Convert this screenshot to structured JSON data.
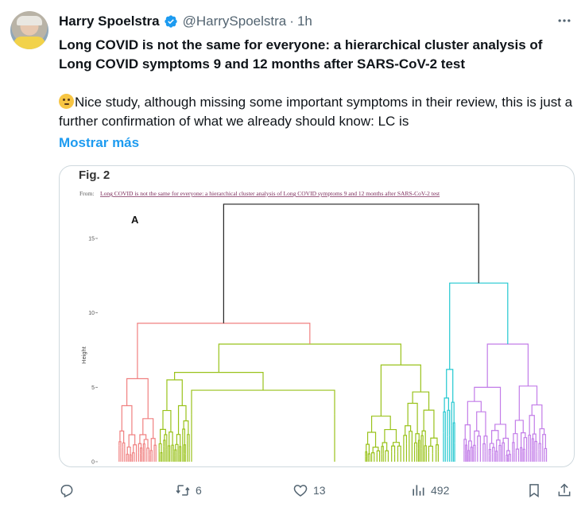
{
  "tweet": {
    "author_name": "Harry Spoelstra",
    "handle": "@HarrySpoelstra",
    "separator": "·",
    "time": "1h",
    "title": "Long COVID is not the same for everyone: a hierarchical cluster analysis of Long COVID symptoms 9 and 12 months after SARS-CoV-2 test",
    "body": "Nice study, although missing some important symptoms in their review, this is just a further confirmation of what we already should know: LC is",
    "show_more": "Mostrar más"
  },
  "figure": {
    "title": "Fig. 2",
    "from_label": "From:",
    "from_link": "Long COVID is not the same for everyone: a hierarchical cluster analysis of Long COVID symptoms 9 and 12 months after SARS-CoV-2 test",
    "panel_label": "A"
  },
  "chart_data": {
    "type": "dendrogram",
    "ylabel": "Height",
    "ylim": [
      0,
      16
    ],
    "yticks": [
      "0",
      "5",
      "10",
      "15"
    ],
    "tick_values": [
      0,
      5,
      10,
      15
    ],
    "root_height": 17.3,
    "clusters": [
      {
        "color": "#f08080",
        "merge_height": 9.3
      },
      {
        "color": "#99c21a",
        "merge_height": 7.9
      },
      {
        "color": "#22c8d0",
        "merge_height": 12.0
      },
      {
        "color": "#c27ce8",
        "merge_height": 7.9
      }
    ],
    "colors": {
      "root": "#222222"
    }
  },
  "actions": {
    "reply_count": "",
    "retweet_count": "6",
    "like_count": "13",
    "views_count": "492"
  },
  "colors": {
    "accent": "#1d9bf0",
    "verified": "#1d9bf0",
    "muted": "#536471"
  }
}
